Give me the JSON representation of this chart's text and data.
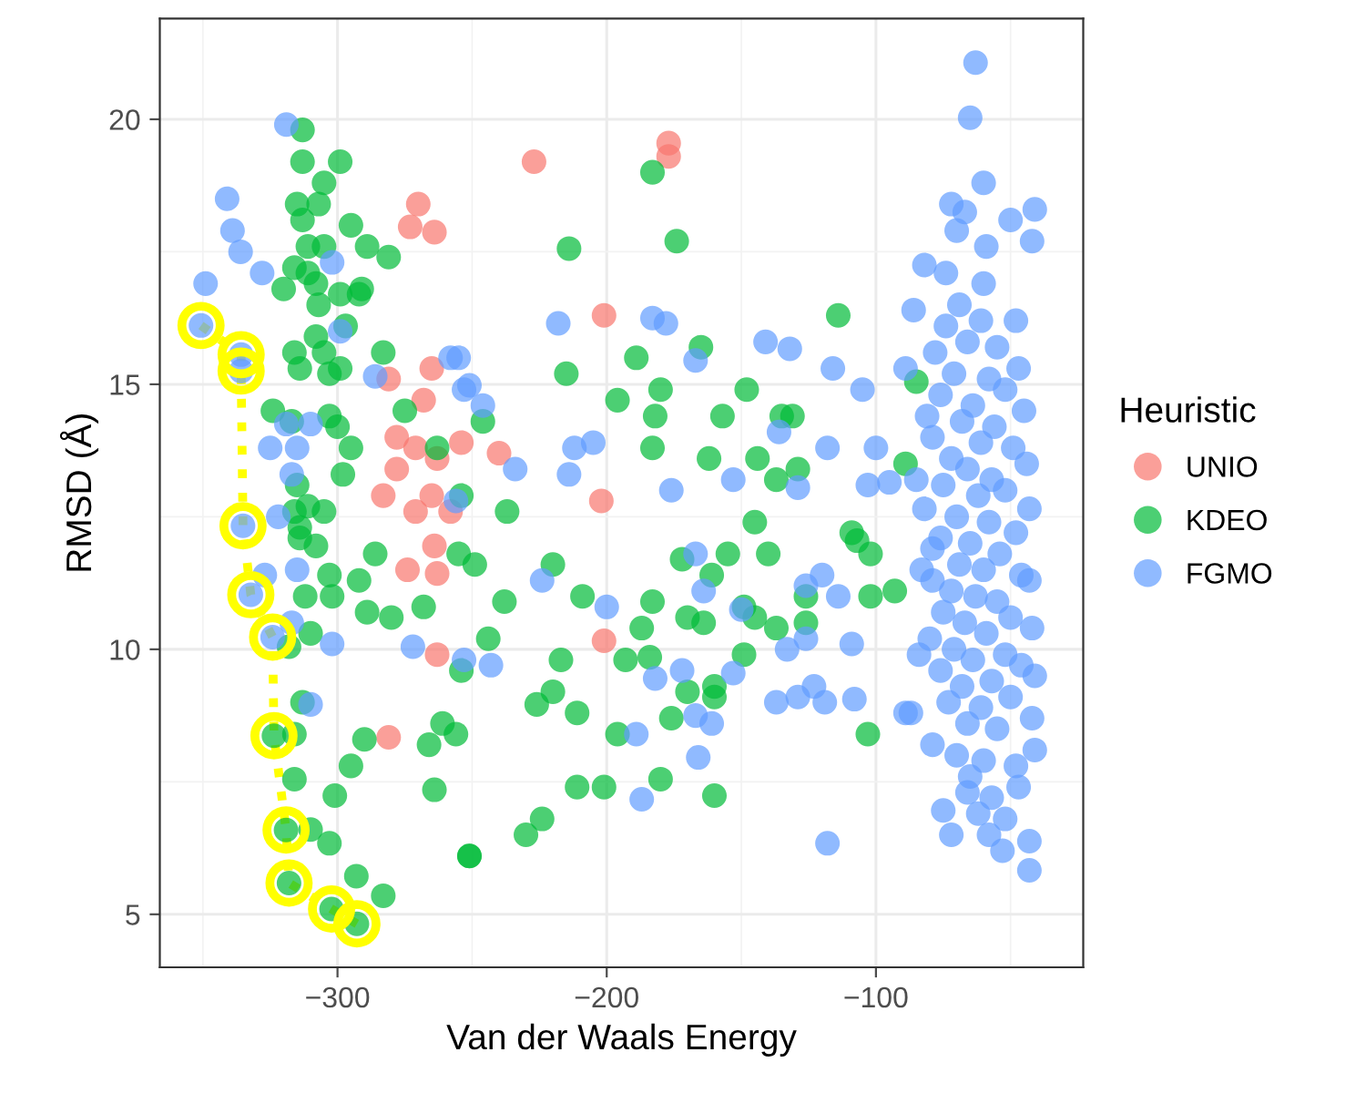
{
  "chart_data": {
    "type": "scatter",
    "xlabel": "Van der Waals Energy",
    "ylabel": "RMSD (Å)",
    "legend_title": "Heuristic",
    "xlim": [
      -366,
      -23
    ],
    "ylim": [
      4.0,
      21.9
    ],
    "xticks": [
      {
        "value": -300,
        "label": "−300"
      },
      {
        "value": -200,
        "label": "−200"
      },
      {
        "value": -100,
        "label": "−100"
      }
    ],
    "yticks": [
      5,
      10,
      15,
      20
    ],
    "grid": true,
    "legend": "right",
    "marker": "circle",
    "series": [
      {
        "name": "UNIO",
        "color": "#f8766d",
        "x": [
          -227,
          -177,
          -177,
          -201,
          -270,
          -273,
          -264,
          -265,
          -281,
          -268,
          -278,
          -254,
          -271,
          -263,
          -278,
          -265,
          -283,
          -271,
          -258,
          -274,
          -263,
          -264,
          -263,
          -281,
          -240,
          -202,
          -201
        ],
        "values": [
          19.2,
          19.3,
          19.55,
          16.3,
          18.4,
          17.97,
          17.87,
          15.3,
          15.1,
          14.7,
          14.0,
          13.9,
          13.8,
          13.6,
          13.4,
          12.9,
          12.9,
          12.6,
          12.6,
          11.5,
          11.43,
          11.95,
          9.9,
          8.34,
          13.7,
          12.8,
          10.16
        ]
      },
      {
        "name": "KDEO",
        "color": "#00ba38",
        "x": [
          -313,
          -313,
          -299,
          -305,
          -315,
          -307,
          -313,
          -295,
          -289,
          -281,
          -311,
          -305,
          -316,
          -311,
          -320,
          -308,
          -291,
          -292,
          -307,
          -299,
          -297,
          -308,
          -316,
          -305,
          -299,
          -314,
          -303,
          -283,
          -275,
          -324,
          -303,
          -300,
          -295,
          -317,
          -298,
          -315,
          -311,
          -305,
          -316,
          -314,
          -263,
          -254,
          -314,
          -308,
          -286,
          -303,
          -292,
          -312,
          -302,
          -289,
          -280,
          -268,
          -310,
          -318,
          -255,
          -254,
          -313,
          -316,
          -290,
          -295,
          -266,
          -261,
          -256,
          -316,
          -301,
          -264,
          -310,
          -303,
          -293,
          -283,
          -251,
          -183,
          -214,
          -174,
          -114,
          -215,
          -189,
          -165,
          -180,
          -196,
          -182,
          -148,
          -157,
          -135,
          -131,
          -183,
          -162,
          -144,
          -137,
          -129,
          -89,
          -246,
          -237,
          -145,
          -109,
          -249,
          -220,
          -238,
          -209,
          -183,
          -187,
          -244,
          -217,
          -193,
          -184,
          -226,
          -220,
          -211,
          -172,
          -155,
          -140,
          -161,
          -170,
          -164,
          -149,
          -145,
          -137,
          -126,
          -149,
          -170,
          -160,
          -160,
          -176,
          -196,
          -211,
          -201,
          -180,
          -160,
          -224,
          -230,
          -251,
          -102,
          -93,
          -103,
          -107,
          -102,
          -126,
          -85,
          -323.6,
          -319.1,
          -318.0,
          -302.2,
          -292.8
        ],
        "values": [
          19.8,
          19.2,
          19.2,
          18.8,
          18.4,
          18.4,
          18.1,
          18.0,
          17.6,
          17.4,
          17.6,
          17.6,
          17.2,
          17.1,
          16.8,
          16.9,
          16.8,
          16.7,
          16.5,
          16.7,
          16.1,
          15.9,
          15.6,
          15.6,
          15.3,
          15.3,
          15.2,
          15.6,
          14.5,
          14.5,
          14.4,
          14.2,
          13.8,
          14.3,
          13.3,
          13.1,
          12.7,
          12.6,
          12.6,
          12.3,
          13.8,
          12.9,
          12.1,
          11.95,
          11.8,
          11.4,
          11.3,
          11.0,
          11.0,
          10.7,
          10.6,
          10.8,
          10.3,
          10.05,
          11.8,
          9.6,
          9.0,
          8.4,
          8.3,
          7.8,
          8.2,
          8.6,
          8.4,
          7.55,
          7.24,
          7.35,
          6.6,
          6.34,
          5.72,
          5.35,
          6.1,
          19.0,
          17.56,
          17.7,
          16.3,
          15.2,
          15.5,
          15.7,
          14.9,
          14.7,
          14.4,
          14.9,
          14.4,
          14.4,
          14.4,
          13.8,
          13.6,
          13.6,
          13.2,
          13.4,
          13.5,
          14.3,
          12.6,
          12.4,
          12.2,
          11.6,
          11.6,
          10.9,
          11.0,
          10.9,
          10.4,
          10.2,
          9.8,
          9.8,
          9.85,
          8.96,
          9.2,
          8.8,
          11.7,
          11.8,
          11.8,
          11.4,
          10.6,
          10.5,
          10.8,
          10.6,
          10.4,
          10.5,
          9.9,
          9.2,
          9.3,
          9.1,
          8.7,
          8.4,
          7.4,
          7.4,
          7.55,
          7.24,
          6.8,
          6.5,
          6.1,
          11.0,
          11.1,
          8.4,
          12.05,
          11.8,
          11.0,
          15.05,
          8.37,
          6.59,
          5.59,
          5.1,
          4.82
        ]
      },
      {
        "name": "FGMO",
        "color": "#619cff",
        "x": [
          -350.7,
          -335.8,
          -335.8,
          -335.1,
          -332.2,
          -324.1,
          -319,
          -341,
          -339,
          -336,
          -328,
          -349,
          -302,
          -299,
          -286,
          -258,
          -253,
          -319,
          -310,
          -325,
          -315,
          -317,
          -322,
          -256,
          -327,
          -315,
          -317,
          -302,
          -272,
          -310,
          -253,
          -218,
          -183,
          -178,
          -167,
          -141,
          -132,
          -116,
          -105,
          -89,
          -255,
          -251,
          -246,
          -136,
          -118,
          -100,
          -212,
          -205,
          -234,
          -214,
          -176,
          -153,
          -129,
          -103,
          -95,
          -224,
          -200,
          -167,
          -164,
          -150,
          -126,
          -120,
          -114,
          -133,
          -126,
          -109,
          -243,
          -182,
          -172,
          -153,
          -137,
          -129,
          -123,
          -119,
          -108,
          -89,
          -167,
          -161,
          -189,
          -166,
          -187,
          -118,
          -63,
          -65,
          -60,
          -72,
          -41,
          -67,
          -50,
          -70,
          -42,
          -59,
          -82,
          -74,
          -60,
          -69,
          -48,
          -74,
          -61,
          -78,
          -47,
          -66,
          -55,
          -71,
          -58,
          -52,
          -76,
          -64,
          -45,
          -68,
          -56,
          -79,
          -61,
          -49,
          -72,
          -44,
          -66,
          -57,
          -75,
          -52,
          -62,
          -82,
          -43,
          -70,
          -58,
          -48,
          -76,
          -65,
          -79,
          -54,
          -69,
          -60,
          -46,
          -79,
          -43,
          -72,
          -63,
          -55,
          -75,
          -50,
          -67,
          -42,
          -59,
          -80,
          -71,
          -52,
          -64,
          -46,
          -76,
          -41,
          -57,
          -68,
          -73,
          -50,
          -61,
          -87,
          -42,
          -66,
          -55,
          -79,
          -41,
          -70,
          -60,
          -48,
          -65,
          -47,
          -57,
          -75,
          -62,
          -52,
          -72,
          -43,
          -53,
          -58,
          -43,
          -66,
          -84,
          -83,
          -85,
          -81,
          -86
        ],
        "values": [
          16.11,
          15.56,
          15.25,
          12.33,
          11.03,
          10.23,
          19.9,
          18.5,
          17.9,
          17.5,
          17.1,
          16.9,
          17.3,
          16.0,
          15.15,
          15.5,
          14.9,
          14.25,
          14.25,
          13.8,
          13.8,
          13.3,
          12.5,
          12.8,
          11.4,
          11.5,
          10.5,
          10.1,
          10.05,
          8.96,
          9.8,
          16.15,
          16.25,
          16.15,
          15.45,
          15.8,
          15.67,
          15.3,
          14.9,
          15.3,
          15.5,
          14.98,
          14.6,
          14.1,
          13.8,
          13.8,
          13.8,
          13.9,
          13.4,
          13.3,
          13.0,
          13.2,
          13.05,
          13.1,
          13.15,
          11.3,
          10.8,
          11.8,
          11.1,
          10.75,
          11.2,
          11.4,
          11.0,
          10.0,
          10.2,
          10.1,
          9.7,
          9.45,
          9.6,
          9.55,
          9.0,
          9.1,
          9.3,
          9.0,
          9.06,
          8.8,
          8.75,
          8.6,
          8.4,
          7.96,
          7.17,
          6.34,
          21.07,
          20.03,
          18.8,
          18.4,
          18.3,
          18.25,
          18.1,
          17.9,
          17.7,
          17.6,
          17.25,
          17.1,
          16.9,
          16.5,
          16.2,
          16.1,
          16.2,
          15.6,
          15.3,
          15.8,
          15.7,
          15.2,
          15.1,
          14.9,
          14.8,
          14.6,
          14.5,
          14.3,
          14.2,
          14.0,
          13.9,
          13.8,
          13.6,
          13.5,
          13.4,
          13.2,
          13.1,
          13.0,
          12.9,
          12.65,
          12.65,
          12.5,
          12.4,
          12.2,
          12.1,
          12.0,
          11.9,
          11.8,
          11.6,
          11.5,
          11.4,
          11.3,
          11.3,
          11.1,
          11.0,
          10.9,
          10.7,
          10.6,
          10.5,
          10.4,
          10.3,
          10.2,
          10.0,
          9.9,
          9.8,
          9.7,
          9.6,
          9.5,
          9.4,
          9.3,
          9.0,
          9.1,
          8.9,
          8.8,
          8.7,
          8.6,
          8.5,
          8.2,
          8.1,
          8.0,
          7.9,
          7.8,
          7.6,
          7.4,
          7.2,
          6.96,
          6.9,
          6.8,
          6.5,
          6.38,
          6.2,
          6.5,
          5.83,
          7.3,
          9.9,
          11.5,
          13.2,
          14.4,
          16.4
        ]
      },
      {
        "type": "line",
        "color": "#ffff00",
        "line_style": "dotted",
        "marker": "circle",
        "x": [
          -350.7,
          -335.8,
          -335.8,
          -335.1,
          -332.2,
          -324.1,
          -323.6,
          -319.1,
          -318.0,
          -302.2,
          -292.8
        ],
        "values": [
          16.11,
          15.56,
          15.25,
          12.33,
          11.03,
          10.23,
          8.37,
          6.59,
          5.59,
          5.1,
          4.82
        ]
      }
    ]
  }
}
